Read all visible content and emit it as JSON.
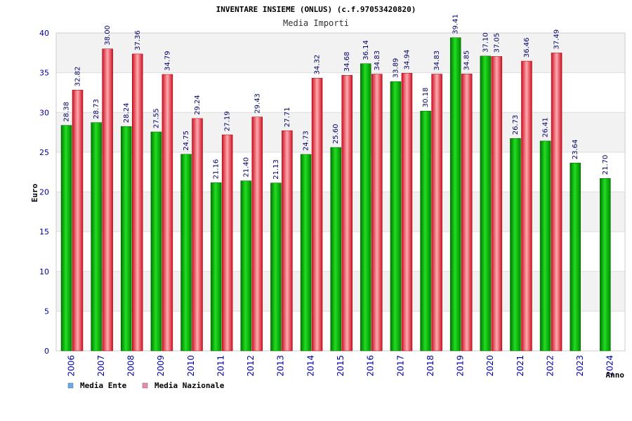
{
  "chart_data": {
    "type": "bar",
    "title": "INVENTARE INSIEME (ONLUS) (c.f.97053420820)",
    "subtitle": "Media Importi",
    "xlabel": "Anno",
    "ylabel": "Euro",
    "ylim": [
      0,
      40
    ],
    "yticks": [
      "0",
      "5",
      "10",
      "15",
      "20",
      "25",
      "30",
      "35",
      "40"
    ],
    "categories": [
      "2006",
      "2007",
      "2008",
      "2009",
      "2010",
      "2011",
      "2012",
      "2013",
      "2014",
      "2015",
      "2016",
      "2017",
      "2018",
      "2019",
      "2020",
      "2021",
      "2022",
      "2023",
      "2024"
    ],
    "series": [
      {
        "name": "Media Ente",
        "color": "#00aa00",
        "values": [
          28.38,
          28.73,
          28.24,
          27.55,
          24.75,
          21.16,
          21.4,
          21.13,
          24.73,
          25.6,
          36.14,
          33.89,
          30.18,
          39.41,
          37.1,
          26.73,
          26.41,
          23.64,
          21.7
        ],
        "labels": [
          "28.38",
          "28.73",
          "28.24",
          "27.55",
          "24.75",
          "21.16",
          "21.40",
          "21.13",
          "24.73",
          "25.60",
          "36.14",
          "33.89",
          "30.18",
          "39.41",
          "37.10",
          "26.73",
          "26.41",
          "23.64",
          "21.70"
        ]
      },
      {
        "name": "Media Nazionale",
        "color": "#dd2233",
        "values": [
          32.82,
          38.0,
          37.36,
          34.79,
          29.24,
          27.19,
          29.43,
          27.71,
          34.32,
          34.68,
          34.83,
          34.94,
          34.83,
          34.85,
          37.05,
          36.46,
          37.49,
          null,
          null
        ],
        "labels": [
          "32.82",
          "38.00",
          "37.36",
          "34.79",
          "29.24",
          "27.19",
          "29.43",
          "27.71",
          "34.32",
          "34.68",
          "34.83",
          "34.94",
          "34.83",
          "34.85",
          "37.05",
          "36.46",
          "37.49",
          "",
          ""
        ]
      }
    ],
    "legend": [
      {
        "name": "Media Ente",
        "swatch": "#66aaee"
      },
      {
        "name": "Media Nazionale",
        "swatch": "#ee88aa"
      }
    ],
    "legend_position": "bottom-left",
    "grid": true
  }
}
